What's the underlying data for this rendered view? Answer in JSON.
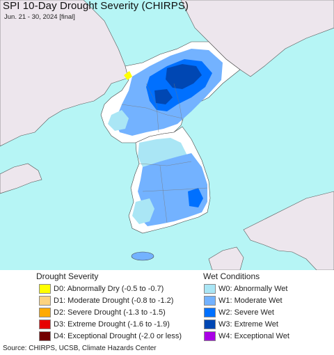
{
  "title": "SPI 10-Day Drought Severity (CHIRPS)",
  "subtitle": "Jun. 21 - 30, 2024 [final]",
  "map": {
    "ocean_color": "#b6f5f5",
    "land_color": "#ffffff",
    "foreign_land_color": "#ede6ed"
  },
  "legend": {
    "drought_heading": "Drought Severity",
    "wet_heading": "Wet Conditions",
    "drought": [
      {
        "label": "D0: Abnormally Dry (-0.5 to -0.7)",
        "color": "#ffff00"
      },
      {
        "label": "D1: Moderate Drought (-0.8 to -1.2)",
        "color": "#fcd37f"
      },
      {
        "label": "D2: Severe Drought (-1.3 to -1.5)",
        "color": "#ffaa00"
      },
      {
        "label": "D3: Extreme Drought (-1.6 to -1.9)",
        "color": "#e60000"
      },
      {
        "label": "D4: Exceptional Drought (-2.0 or less)",
        "color": "#730000"
      }
    ],
    "wet": [
      {
        "label": "W0: Abnormally Wet",
        "color": "#aae6f5"
      },
      {
        "label": "W1: Moderate Wet",
        "color": "#73b2ff"
      },
      {
        "label": "W2: Severe Wet",
        "color": "#0070ff"
      },
      {
        "label": "W3: Extreme Wet",
        "color": "#0047b3"
      },
      {
        "label": "W4: Exceptional Wet",
        "color": "#a900e6"
      }
    ]
  },
  "source": "Source: CHIRPS, UCSB, Climate Hazards Center"
}
